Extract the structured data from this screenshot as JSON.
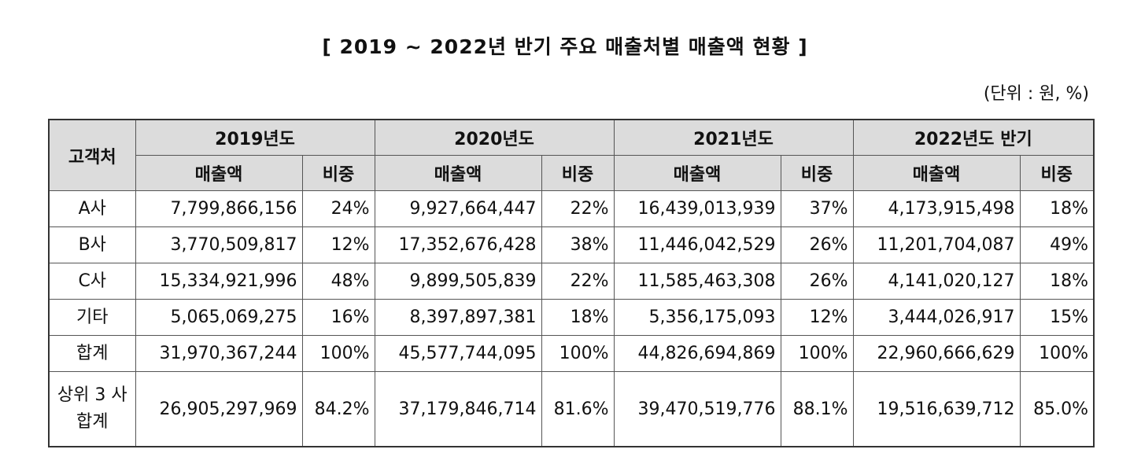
{
  "title": "[ 2019 ~ 2022년 반기 주요 매출처별 매출액 현황 ]",
  "unit": "(단위 : 원, %)",
  "header": {
    "customer": "고객처",
    "years": [
      "2019년도",
      "2020년도",
      "2021년도",
      "2022년도 반기"
    ],
    "sales_label": "매출액",
    "share_label": "비중"
  },
  "rows": [
    {
      "customer": "A사",
      "cells": [
        "7,799,866,156",
        "24%",
        "9,927,664,447",
        "22%",
        "16,439,013,939",
        "37%",
        "4,173,915,498",
        "18%"
      ]
    },
    {
      "customer": "B사",
      "cells": [
        "3,770,509,817",
        "12%",
        "17,352,676,428",
        "38%",
        "11,446,042,529",
        "26%",
        "11,201,704,087",
        "49%"
      ]
    },
    {
      "customer": "C사",
      "cells": [
        "15,334,921,996",
        "48%",
        "9,899,505,839",
        "22%",
        "11,585,463,308",
        "26%",
        "4,141,020,127",
        "18%"
      ]
    },
    {
      "customer": "기타",
      "cells": [
        "5,065,069,275",
        "16%",
        "8,397,897,381",
        "18%",
        "5,356,175,093",
        "12%",
        "3,444,026,917",
        "15%"
      ]
    },
    {
      "customer": "합계",
      "cells": [
        "31,970,367,244",
        "100%",
        "45,577,744,095",
        "100%",
        "44,826,694,869",
        "100%",
        "22,960,666,629",
        "100%"
      ]
    },
    {
      "customer": "상위 3 사 합계",
      "cells": [
        "26,905,297,969",
        "84.2%",
        "37,179,846,714",
        "81.6%",
        "39,470,519,776",
        "88.1%",
        "19,516,639,712",
        "85.0%"
      ]
    }
  ]
}
